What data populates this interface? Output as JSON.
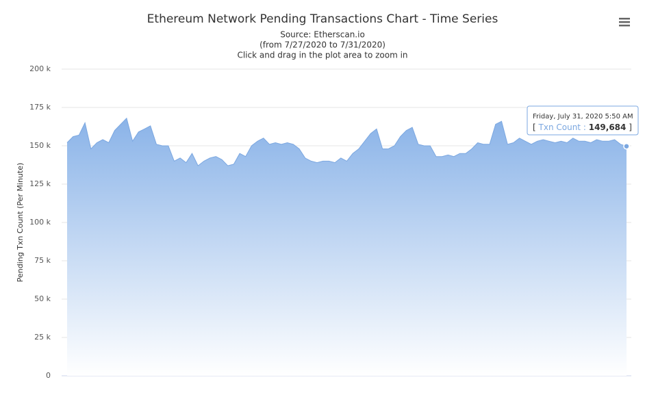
{
  "chart_data": {
    "type": "area",
    "title": "Ethereum Network Pending Transactions Chart - Time Series",
    "subtitle": [
      "Source: Etherscan.io",
      "(from 7/27/2020 to 7/31/2020)",
      "Click and drag in the plot area to zoom in"
    ],
    "y_axis_label": "Pending Txn Count (Per Minute)",
    "ylim": [
      0,
      200000
    ],
    "yticks": [
      0,
      {
        "value": 25000,
        "label": "25 k"
      },
      {
        "value": 50000,
        "label": "50 k"
      },
      {
        "value": 75000,
        "label": "75 k"
      },
      {
        "value": 100000,
        "label": "100 k"
      },
      {
        "value": 125000,
        "label": "125 k"
      },
      {
        "value": 150000,
        "label": "150 k"
      },
      {
        "value": 175000,
        "label": "175 k"
      },
      {
        "value": 200000,
        "label": "200 k"
      }
    ],
    "grid": true,
    "series": [
      {
        "name": "Txn Count",
        "color": "#7ba7e0",
        "values": [
          152000,
          156000,
          157000,
          165000,
          148000,
          152000,
          154000,
          152000,
          160000,
          164000,
          168000,
          153000,
          159000,
          161000,
          163000,
          151000,
          150000,
          150000,
          140000,
          142000,
          139000,
          145000,
          137000,
          140000,
          142000,
          143000,
          141000,
          137000,
          138000,
          145000,
          143000,
          150000,
          153000,
          155000,
          151000,
          152000,
          151000,
          152000,
          151000,
          148000,
          142000,
          140000,
          139000,
          140000,
          140000,
          139000,
          142000,
          140000,
          145000,
          148000,
          153000,
          158000,
          161000,
          148000,
          148000,
          150000,
          156000,
          160000,
          162000,
          151000,
          150000,
          150000,
          143000,
          143000,
          144000,
          143000,
          145000,
          145000,
          148000,
          152000,
          151000,
          151000,
          164000,
          166000,
          151000,
          152000,
          155000,
          153000,
          151000,
          153000,
          154000,
          153000,
          152000,
          153000,
          152000,
          155000,
          153000,
          153000,
          152000,
          154000,
          153000,
          153000,
          154000,
          151000,
          149684
        ]
      }
    ],
    "tooltip": {
      "title": "Friday, July 31, 2020 5:50 AM",
      "open": "[",
      "separator": ":",
      "value_label": "149,684",
      "close": "]"
    }
  }
}
